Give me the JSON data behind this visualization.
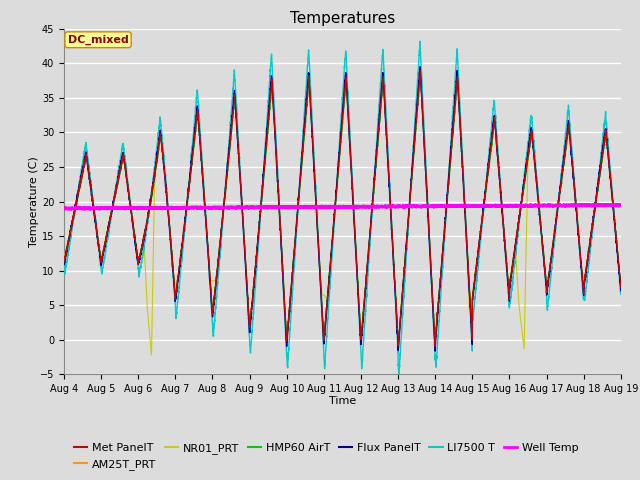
{
  "title": "Temperatures",
  "xlabel": "Time",
  "ylabel": "Temperature (C)",
  "ylim": [
    -5,
    45
  ],
  "yticks": [
    -5,
    0,
    5,
    10,
    15,
    20,
    25,
    30,
    35,
    40,
    45
  ],
  "x_labels": [
    "Aug 4",
    "Aug 5",
    "Aug 6",
    "Aug 7",
    "Aug 8",
    "Aug 9",
    "Aug 10",
    "Aug 11",
    "Aug 12",
    "Aug 13",
    "Aug 14",
    "Aug 15",
    "Aug 16",
    "Aug 17",
    "Aug 18",
    "Aug 19"
  ],
  "annotation_text": "DC_mixed",
  "annotation_color": "#8B0000",
  "annotation_bg": "#FFFF99",
  "annotation_border": "#CC8800",
  "series_colors": {
    "Met PanelT": "#CC0000",
    "AM25T_PRT": "#FF9900",
    "NR01_PRT": "#CCCC00",
    "HMP60 AirT": "#00CC00",
    "Flux PanelT": "#000099",
    "LI7500 T": "#00CCCC",
    "Well Temp": "#FF00FF"
  },
  "background_color": "#DCDCDC",
  "grid_color": "#FFFFFF",
  "title_fontsize": 11,
  "axis_fontsize": 8,
  "tick_fontsize": 7,
  "legend_fontsize": 8
}
